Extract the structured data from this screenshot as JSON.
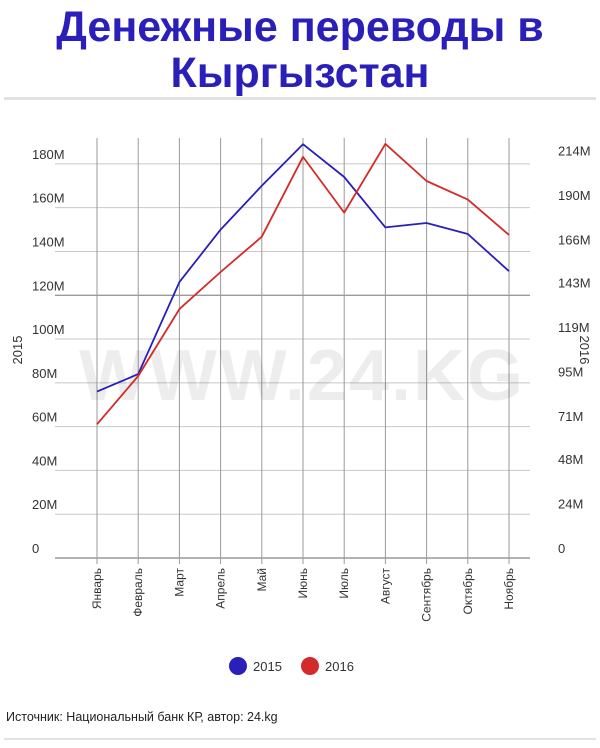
{
  "title": {
    "line1": "Денежные переводы в",
    "line2": "Кыргызстан"
  },
  "watermark": "WWW.24.KG",
  "source": "Источник: Национальный банк КР, автор: 24.kg",
  "chart_data": {
    "type": "line",
    "categories": [
      "Январь",
      "Февраль",
      "Март",
      "Апрель",
      "Май",
      "Июнь",
      "Июль",
      "Август",
      "Сентябрь",
      "Октябрь",
      "Ноябрь"
    ],
    "left_axis": {
      "label": "2015",
      "ylim": [
        0,
        190
      ],
      "ticks": [
        0,
        20,
        40,
        60,
        80,
        100,
        120,
        140,
        160,
        180
      ],
      "tick_labels": [
        "0",
        "20M",
        "40M",
        "60M",
        "80M",
        "100M",
        "120M",
        "140M",
        "160M",
        "180M"
      ]
    },
    "right_axis": {
      "label": "2016",
      "ylim": [
        0,
        224
      ],
      "ticks": [
        0,
        24,
        48,
        71,
        95,
        119,
        143,
        166,
        190,
        214
      ],
      "tick_labels": [
        "0",
        "24M",
        "48M",
        "71M",
        "95M",
        "119M",
        "143M",
        "166M",
        "190M",
        "214M"
      ]
    },
    "series": [
      {
        "name": "2015",
        "axis": "left",
        "color": "#2a1fb8",
        "values": [
          76,
          84,
          126,
          150,
          170,
          189,
          174,
          151,
          153,
          148,
          131
        ]
      },
      {
        "name": "2016",
        "axis": "right",
        "color": "#d42a2a",
        "values": [
          72,
          98,
          134,
          154,
          173,
          216,
          186,
          223,
          203,
          193,
          174
        ]
      }
    ],
    "grid": true,
    "legend": "bottom-center"
  }
}
